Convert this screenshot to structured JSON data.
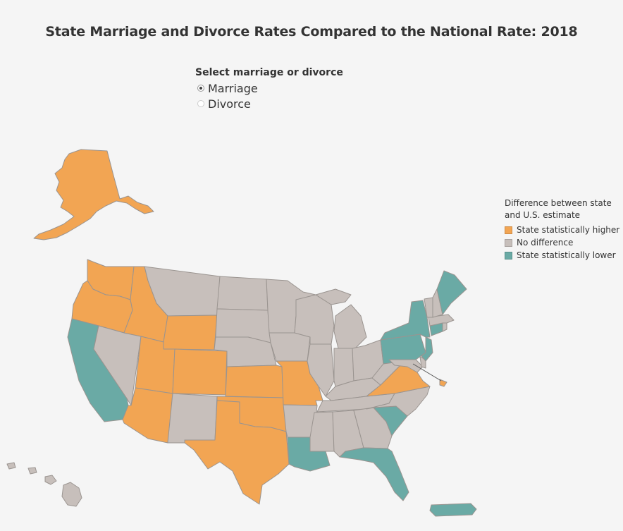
{
  "title": "State Marriage and Divorce Rates Compared to the National Rate: 2018",
  "selector": {
    "heading": "Select marriage or divorce",
    "options": [
      {
        "label": "Marriage",
        "selected": true
      },
      {
        "label": "Divorce",
        "selected": false
      }
    ]
  },
  "legend": {
    "title_line1": "Difference between state",
    "title_line2": "and U.S. estimate",
    "items": [
      {
        "label": "State statistically higher",
        "color": "#f2a553"
      },
      {
        "label": "No difference",
        "color": "#c7bfbb"
      },
      {
        "label": "State statistically lower",
        "color": "#6aaaa5"
      }
    ]
  },
  "colors": {
    "higher": "#f2a553",
    "none": "#c7bfbb",
    "lower": "#6aaaa5",
    "border": "#9a9490"
  },
  "state_categories": {
    "higher": [
      "AK",
      "WA",
      "OR",
      "ID",
      "WY",
      "UT",
      "CO",
      "AZ",
      "KS",
      "OK",
      "TX",
      "MO",
      "VA",
      "DC"
    ],
    "lower": [
      "CA",
      "LA",
      "FL",
      "SC",
      "NY",
      "PA",
      "NJ",
      "ME",
      "CT",
      "PR"
    ],
    "none": [
      "MT",
      "ND",
      "SD",
      "NE",
      "MN",
      "IA",
      "WI",
      "IL",
      "MI",
      "IN",
      "OH",
      "KY",
      "TN",
      "AR",
      "MS",
      "AL",
      "GA",
      "NC",
      "WV",
      "MD",
      "DE",
      "VT",
      "NH",
      "MA",
      "RI",
      "NV",
      "NM",
      "HI"
    ]
  }
}
